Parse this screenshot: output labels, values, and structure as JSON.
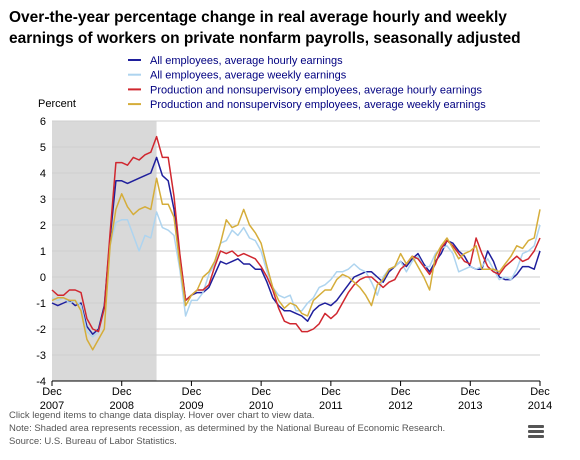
{
  "chart_data": {
    "type": "line",
    "title": "Over-the-year percentage change in real average hourly and weekly earnings of workers on private nonfarm payrolls, seasonally adjusted",
    "ylabel": "Percent",
    "xlabel": "",
    "ylim": [
      -4,
      6
    ],
    "yticks": [
      -4,
      -3,
      -2,
      -1,
      0,
      1,
      2,
      3,
      4,
      5,
      6
    ],
    "xlim": [
      "2007-12",
      "2014-12"
    ],
    "xticks": [
      {
        "month": "Dec",
        "year": "2007"
      },
      {
        "month": "Dec",
        "year": "2008"
      },
      {
        "month": "Dec",
        "year": "2009"
      },
      {
        "month": "Dec",
        "year": "2010"
      },
      {
        "month": "Dec",
        "year": "2011"
      },
      {
        "month": "Dec",
        "year": "2012"
      },
      {
        "month": "Dec",
        "year": "2013"
      },
      {
        "month": "Dec",
        "year": "2014"
      }
    ],
    "grid": true,
    "legend_position": "top",
    "recession": {
      "start": "2007-12",
      "end": "2009-06",
      "color": "#d9d9d9"
    },
    "x": [
      "2007-12",
      "2008-01",
      "2008-02",
      "2008-03",
      "2008-04",
      "2008-05",
      "2008-06",
      "2008-07",
      "2008-08",
      "2008-09",
      "2008-10",
      "2008-11",
      "2008-12",
      "2009-01",
      "2009-02",
      "2009-03",
      "2009-04",
      "2009-05",
      "2009-06",
      "2009-07",
      "2009-08",
      "2009-09",
      "2009-10",
      "2009-11",
      "2009-12",
      "2010-01",
      "2010-02",
      "2010-03",
      "2010-04",
      "2010-05",
      "2010-06",
      "2010-07",
      "2010-08",
      "2010-09",
      "2010-10",
      "2010-11",
      "2010-12",
      "2011-01",
      "2011-02",
      "2011-03",
      "2011-04",
      "2011-05",
      "2011-06",
      "2011-07",
      "2011-08",
      "2011-09",
      "2011-10",
      "2011-11",
      "2011-12",
      "2012-01",
      "2012-02",
      "2012-03",
      "2012-04",
      "2012-05",
      "2012-06",
      "2012-07",
      "2012-08",
      "2012-09",
      "2012-10",
      "2012-11",
      "2012-12",
      "2013-01",
      "2013-02",
      "2013-03",
      "2013-04",
      "2013-05",
      "2013-06",
      "2013-07",
      "2013-08",
      "2013-09",
      "2013-10",
      "2013-11",
      "2013-12",
      "2014-01",
      "2014-02",
      "2014-03",
      "2014-04",
      "2014-05",
      "2014-06",
      "2014-07",
      "2014-08",
      "2014-09",
      "2014-10",
      "2014-11",
      "2014-12"
    ],
    "series": [
      {
        "name": "All employees, average hourly earnings",
        "color": "#1f1f9c",
        "values": [
          -1.0,
          -1.1,
          -1.0,
          -0.9,
          -1.1,
          -1.0,
          -1.9,
          -2.2,
          -2.0,
          -1.1,
          1.5,
          3.7,
          3.7,
          3.6,
          3.7,
          3.8,
          3.9,
          4.0,
          4.6,
          3.9,
          3.7,
          2.6,
          0.8,
          -0.9,
          -0.7,
          -0.6,
          -0.6,
          -0.4,
          0.1,
          0.6,
          0.5,
          0.6,
          0.7,
          0.5,
          0.5,
          0.3,
          0.3,
          -0.2,
          -0.8,
          -1.1,
          -1.3,
          -1.3,
          -1.4,
          -1.5,
          -1.7,
          -1.3,
          -1.1,
          -1.0,
          -1.1,
          -0.9,
          -0.6,
          -0.3,
          0.0,
          0.1,
          0.2,
          0.2,
          0.0,
          -0.2,
          0.2,
          0.4,
          0.6,
          0.4,
          0.7,
          0.9,
          0.5,
          0.2,
          0.6,
          0.9,
          1.4,
          1.3,
          1.0,
          0.8,
          0.4,
          0.3,
          0.3,
          1.0,
          0.6,
          0.0,
          -0.1,
          -0.1,
          0.1,
          0.4,
          0.4,
          0.3,
          1.0
        ]
      },
      {
        "name": "All employees, average weekly earnings",
        "color": "#aed4ef",
        "values": [
          -0.8,
          -0.9,
          -0.8,
          -1.0,
          -0.9,
          -1.1,
          -2.1,
          -2.3,
          -2.1,
          -1.3,
          1.2,
          2.1,
          2.2,
          2.2,
          1.6,
          1.0,
          1.6,
          1.5,
          2.5,
          1.9,
          1.8,
          1.6,
          0.3,
          -1.5,
          -0.9,
          -0.9,
          -0.6,
          0.1,
          0.5,
          1.3,
          1.4,
          1.8,
          1.6,
          1.9,
          1.5,
          1.4,
          1.0,
          0.2,
          -0.4,
          -0.7,
          -0.8,
          -0.7,
          -1.3,
          -1.3,
          -1.0,
          -0.8,
          -0.4,
          -0.3,
          -0.1,
          0.2,
          0.2,
          0.3,
          0.5,
          0.3,
          0.2,
          -0.2,
          -0.7,
          0.0,
          0.3,
          0.4,
          0.6,
          0.2,
          0.6,
          0.8,
          0.4,
          0.4,
          0.9,
          1.1,
          1.2,
          0.9,
          0.2,
          0.3,
          0.4,
          0.3,
          0.4,
          0.7,
          0.3,
          -0.1,
          0.0,
          -0.1,
          0.3,
          0.9,
          1.0,
          1.2,
          2.0
        ]
      },
      {
        "name": "Production and nonsupervisory employees, average hourly earnings",
        "color": "#d0272f",
        "values": [
          -0.5,
          -0.7,
          -0.7,
          -0.5,
          -0.5,
          -0.6,
          -1.6,
          -2.0,
          -2.1,
          -1.2,
          1.7,
          4.4,
          4.4,
          4.3,
          4.6,
          4.5,
          4.7,
          4.8,
          5.4,
          4.6,
          4.6,
          3.1,
          0.9,
          -0.9,
          -0.7,
          -0.5,
          -0.5,
          -0.3,
          0.4,
          1.0,
          0.9,
          1.0,
          0.8,
          0.9,
          0.8,
          0.7,
          0.4,
          0.0,
          -0.5,
          -1.2,
          -1.7,
          -1.8,
          -1.8,
          -2.1,
          -2.1,
          -2.0,
          -1.8,
          -1.4,
          -1.6,
          -1.4,
          -1.0,
          -0.6,
          -0.3,
          -0.1,
          0.0,
          0.0,
          -0.2,
          -0.4,
          -0.2,
          -0.1,
          0.3,
          0.5,
          0.8,
          0.7,
          0.4,
          0.1,
          0.5,
          1.1,
          1.4,
          1.2,
          0.9,
          0.6,
          0.5,
          1.5,
          0.9,
          0.4,
          0.2,
          0.1,
          0.4,
          0.6,
          0.8,
          0.6,
          0.7,
          1.0,
          1.5
        ]
      },
      {
        "name": "Production and nonsupervisory employees, average weekly earnings",
        "color": "#d5ad3a",
        "values": [
          -0.9,
          -0.8,
          -0.8,
          -0.9,
          -0.9,
          -1.3,
          -2.4,
          -2.8,
          -2.4,
          -2.0,
          1.2,
          2.6,
          3.2,
          2.7,
          2.4,
          2.6,
          2.7,
          2.6,
          3.8,
          2.8,
          2.8,
          2.3,
          0.5,
          -1.1,
          -0.7,
          -0.5,
          0.0,
          0.2,
          0.6,
          1.3,
          2.2,
          1.9,
          2.0,
          2.6,
          2.0,
          1.7,
          1.3,
          0.4,
          -0.4,
          -0.9,
          -1.2,
          -1.0,
          -1.1,
          -1.4,
          -1.5,
          -0.9,
          -0.7,
          -0.5,
          -0.5,
          -0.1,
          0.1,
          0.0,
          -0.2,
          -0.4,
          -0.7,
          -1.1,
          -0.3,
          -0.1,
          0.3,
          0.4,
          0.9,
          0.5,
          0.8,
          0.4,
          0.0,
          -0.5,
          0.8,
          1.2,
          1.5,
          1.1,
          0.7,
          0.9,
          1.0,
          1.2,
          0.3,
          0.3,
          0.3,
          0.2,
          0.5,
          0.8,
          1.2,
          1.1,
          1.4,
          1.5,
          2.6
        ]
      }
    ]
  },
  "footnotes": [
    "Click legend items to change data display. Hover over chart to view data.",
    "Note: Shaded area represents recession, as determined by the National Bureau of Economic Research.",
    "Source: U.S. Bureau of Labor Statistics."
  ],
  "menu_icon": "hamburger-menu-icon"
}
